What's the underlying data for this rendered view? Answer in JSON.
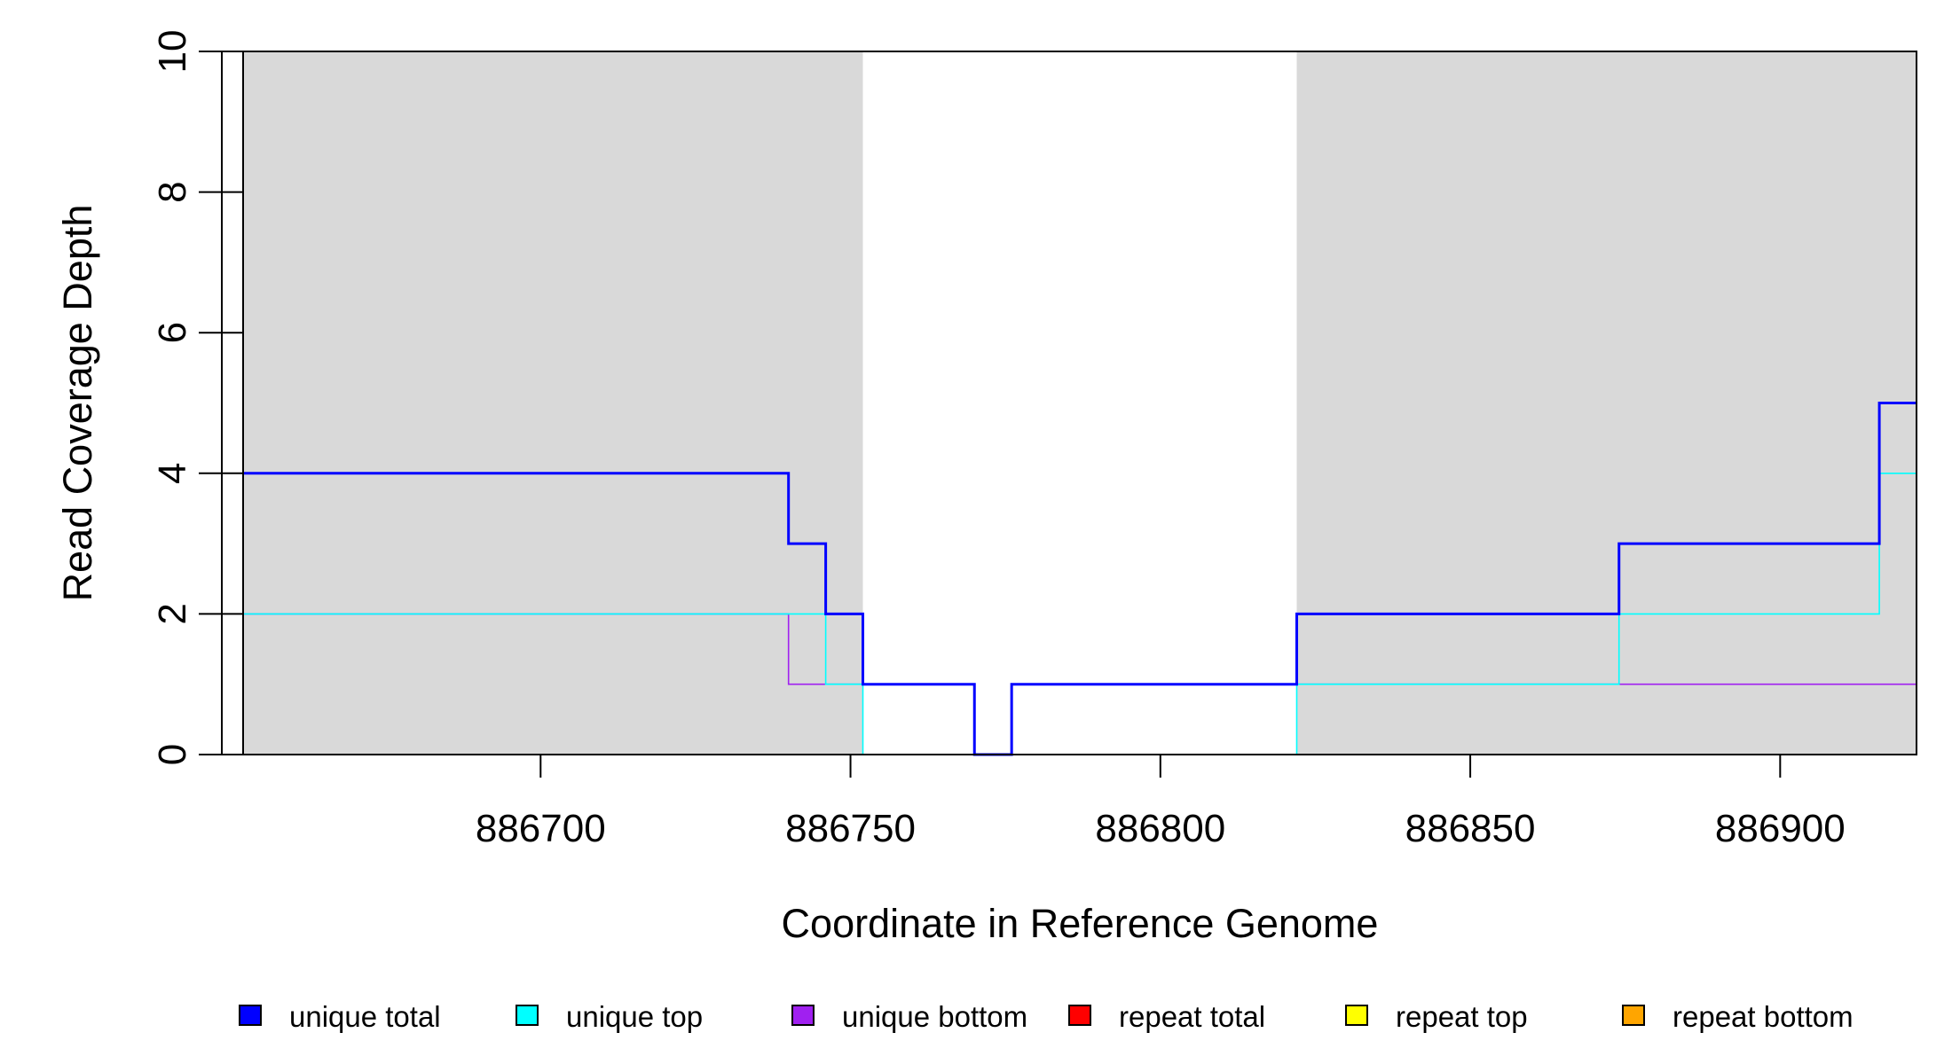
{
  "chart_data": {
    "type": "line",
    "xlabel": "Coordinate in Reference Genome",
    "ylabel": "Read Coverage Depth",
    "xlim": [
      886652,
      886922
    ],
    "ylim": [
      0,
      10
    ],
    "x_ticks": [
      886700,
      886750,
      886800,
      886850,
      886900
    ],
    "y_ticks": [
      0,
      2,
      4,
      6,
      8,
      10
    ],
    "grid": false,
    "legend_position": "bottom",
    "shaded_regions": [
      {
        "x0": 886652,
        "x1": 886752,
        "color": "#d9d9d9"
      },
      {
        "x0": 886822,
        "x1": 886922,
        "color": "#d9d9d9"
      }
    ],
    "series": [
      {
        "name": "unique total",
        "color": "#0000ff",
        "stroke_width": 3,
        "steps": [
          [
            886652,
            4
          ],
          [
            886740,
            3
          ],
          [
            886746,
            2
          ],
          [
            886752,
            1
          ],
          [
            886770,
            0
          ],
          [
            886776,
            1
          ],
          [
            886822,
            2
          ],
          [
            886874,
            3
          ],
          [
            886916,
            5
          ],
          [
            886922,
            5
          ]
        ]
      },
      {
        "name": "unique top",
        "color": "#00ffff",
        "stroke_width": 1.6,
        "steps": [
          [
            886652,
            2
          ],
          [
            886746,
            1
          ],
          [
            886752,
            0
          ],
          [
            886822,
            1
          ],
          [
            886874,
            2
          ],
          [
            886916,
            4
          ],
          [
            886922,
            4
          ]
        ]
      },
      {
        "name": "unique bottom",
        "color": "#a020f0",
        "stroke_width": 1.6,
        "steps": [
          [
            886652,
            2
          ],
          [
            886740,
            1
          ],
          [
            886770,
            0
          ],
          [
            886776,
            1
          ],
          [
            886922,
            1
          ]
        ]
      },
      {
        "name": "repeat total",
        "color": "#ff0000",
        "stroke_width": 1.6,
        "steps": [
          [
            886652,
            0
          ],
          [
            886922,
            0
          ]
        ]
      },
      {
        "name": "repeat top",
        "color": "#ffff00",
        "stroke_width": 1.6,
        "steps": [
          [
            886652,
            0
          ],
          [
            886922,
            0
          ]
        ]
      },
      {
        "name": "repeat bottom",
        "color": "#ffa500",
        "stroke_width": 2,
        "steps": [
          [
            886652,
            0
          ],
          [
            886922,
            0
          ]
        ]
      }
    ]
  }
}
